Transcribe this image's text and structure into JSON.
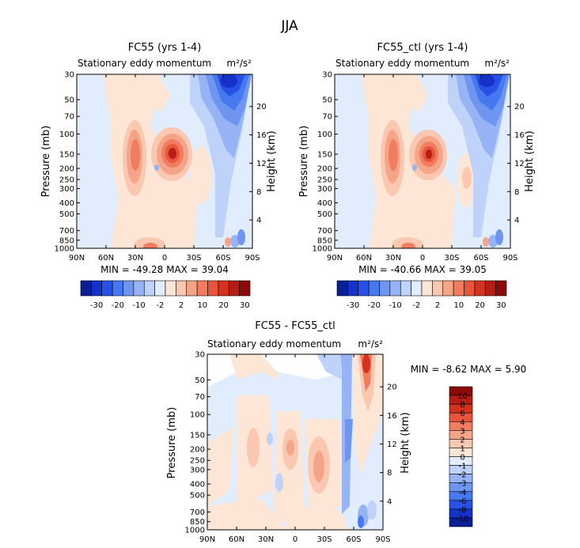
{
  "page_title": "JJA",
  "colors": {
    "neg": [
      "#0a1e96",
      "#1432c8",
      "#2850e6",
      "#4678f0",
      "#6e96f0",
      "#96b4f5",
      "#bed2fa",
      "#e1ecfc"
    ],
    "zero": "#ffffff",
    "pos": [
      "#fde6d6",
      "#fac8b0",
      "#f5a587",
      "#f07d5f",
      "#e6553c",
      "#d2321e",
      "#b41e14",
      "#8c0a0a"
    ]
  },
  "colorbar_top": {
    "labels": [
      "-30",
      "-20",
      "-10",
      "-2",
      "2",
      "10",
      "20",
      "30"
    ]
  },
  "colorbar_diff": {
    "labels": [
      "10",
      "8",
      "6",
      "4",
      "3",
      "2",
      "1",
      "0",
      "-1",
      "-2",
      "-3",
      "-4",
      "-6",
      "-8",
      "-10"
    ]
  },
  "chart_data": [
    {
      "type": "heatmap",
      "title": "FC55 (yrs 1-4)",
      "subtitle": "Stationary eddy momentum",
      "units": "m²/s²",
      "xlabel": "",
      "ylabel": "Pressure (mb)",
      "y2label": "Height (km)",
      "x_ticks": [
        "90N",
        "60N",
        "30N",
        "0",
        "30S",
        "60S",
        "90S"
      ],
      "y_ticks": [
        "30",
        "50",
        "70",
        "100",
        "150",
        "200",
        "250",
        "300",
        "400",
        "500",
        "700",
        "850",
        "1000"
      ],
      "y2_ticks": [
        "20",
        "16",
        "12",
        "8",
        "4"
      ],
      "stats": "MIN = -49.28   MAX = 39.04",
      "min": -49.28,
      "max": 39.04,
      "features": [
        {
          "lat": 32,
          "p": 170,
          "value": 25
        },
        {
          "lat": -4,
          "p": 150,
          "value": 39
        },
        {
          "lat": -74,
          "p": 40,
          "value": -49
        },
        {
          "lat": -56,
          "p": 950,
          "value": 8
        }
      ]
    },
    {
      "type": "heatmap",
      "title": "FC55_ctl (yrs 1-4)",
      "subtitle": "Stationary eddy momentum",
      "units": "m²/s²",
      "xlabel": "",
      "ylabel": "Pressure (mb)",
      "y2label": "Height (km)",
      "x_ticks": [
        "90N",
        "60N",
        "30N",
        "0",
        "30S",
        "60S",
        "90S"
      ],
      "y_ticks": [
        "30",
        "50",
        "70",
        "100",
        "150",
        "200",
        "250",
        "300",
        "400",
        "500",
        "700",
        "850",
        "1000"
      ],
      "y2_ticks": [
        "20",
        "16",
        "12",
        "8",
        "4"
      ],
      "stats": "MIN = -40.66   MAX = 39.05",
      "min": -40.66,
      "max": 39.05,
      "features": [
        {
          "lat": 32,
          "p": 170,
          "value": 24
        },
        {
          "lat": -4,
          "p": 150,
          "value": 39
        },
        {
          "lat": -74,
          "p": 40,
          "value": -41
        },
        {
          "lat": -56,
          "p": 950,
          "value": 8
        }
      ]
    },
    {
      "type": "heatmap",
      "title": "FC55 - FC55_ctl",
      "subtitle": "Stationary eddy momentum",
      "units": "m²/s²",
      "xlabel": "",
      "ylabel": "Pressure (mb)",
      "y2label": "Height (km)",
      "x_ticks": [
        "90N",
        "60N",
        "30N",
        "0",
        "30S",
        "60S",
        "90S"
      ],
      "y_ticks": [
        "30",
        "50",
        "70",
        "100",
        "150",
        "200",
        "250",
        "300",
        "400",
        "500",
        "700",
        "850",
        "1000"
      ],
      "y2_ticks": [
        "20",
        "16",
        "12",
        "8",
        "4"
      ],
      "stats": "MIN =  -8.62   MAX =   5.90",
      "min": -8.62,
      "max": 5.9,
      "features": [
        {
          "lat": -76,
          "p": 35,
          "value": 5.9
        },
        {
          "lat": 0,
          "p": 200,
          "value": 3
        },
        {
          "lat": -22,
          "p": 250,
          "value": 2
        },
        {
          "lat": -74,
          "p": 970,
          "value": -8.6
        }
      ]
    }
  ]
}
